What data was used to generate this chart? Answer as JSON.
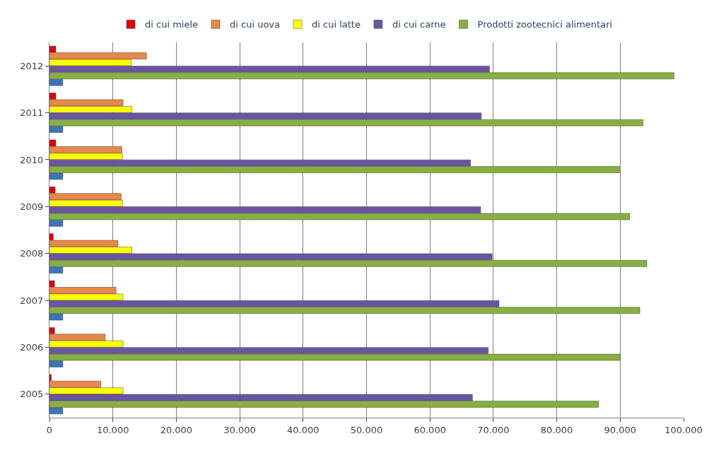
{
  "chart_data": {
    "type": "bar",
    "orientation": "horizontal",
    "categories": [
      "2012",
      "2011",
      "2010",
      "2009",
      "2008",
      "2007",
      "2006",
      "2005"
    ],
    "series": [
      {
        "name": "di cui miele",
        "color": "#e00000",
        "values": [
          1000,
          1000,
          1000,
          900,
          600,
          800,
          800,
          300
        ]
      },
      {
        "name": "di cui uova",
        "color": "#e8884a",
        "values": [
          15300,
          11600,
          11400,
          11300,
          10800,
          10500,
          8800,
          8100
        ]
      },
      {
        "name": "di cui latte",
        "color": "#ffff00",
        "values": [
          12900,
          13000,
          11500,
          11500,
          13000,
          11600,
          11600,
          11600
        ]
      },
      {
        "name": "di cui carne",
        "color": "#6a55a0",
        "values": [
          69400,
          68100,
          66400,
          68000,
          69800,
          70900,
          69200,
          66700
        ]
      },
      {
        "name": "Prodotti zootecnici alimentari",
        "color": "#88b040",
        "values": [
          98500,
          93600,
          89900,
          91500,
          94200,
          93100,
          90000,
          86600
        ]
      },
      {
        "color": "#3a75b8",
        "values": [
          2100,
          2100,
          2100,
          2100,
          2100,
          2100,
          2100,
          2100
        ]
      }
    ],
    "xlim": [
      0,
      100000
    ],
    "xticks": [
      0,
      {
        "value": 10000,
        "label": "10.000"
      },
      {
        "value": 20000,
        "label": "20.000"
      },
      {
        "value": 30000,
        "label": "30.000"
      },
      {
        "value": 40000,
        "label": "40.000"
      },
      {
        "value": 50000,
        "label": "50.000"
      },
      {
        "value": 60000,
        "label": "60.000"
      },
      {
        "value": 70000,
        "label": "70.000"
      },
      {
        "value": 80000,
        "label": "80.000"
      },
      {
        "value": 90000,
        "label": "90.000"
      },
      {
        "value": 100000,
        "label": "100.000"
      }
    ],
    "grid": "x",
    "legend": "top"
  }
}
